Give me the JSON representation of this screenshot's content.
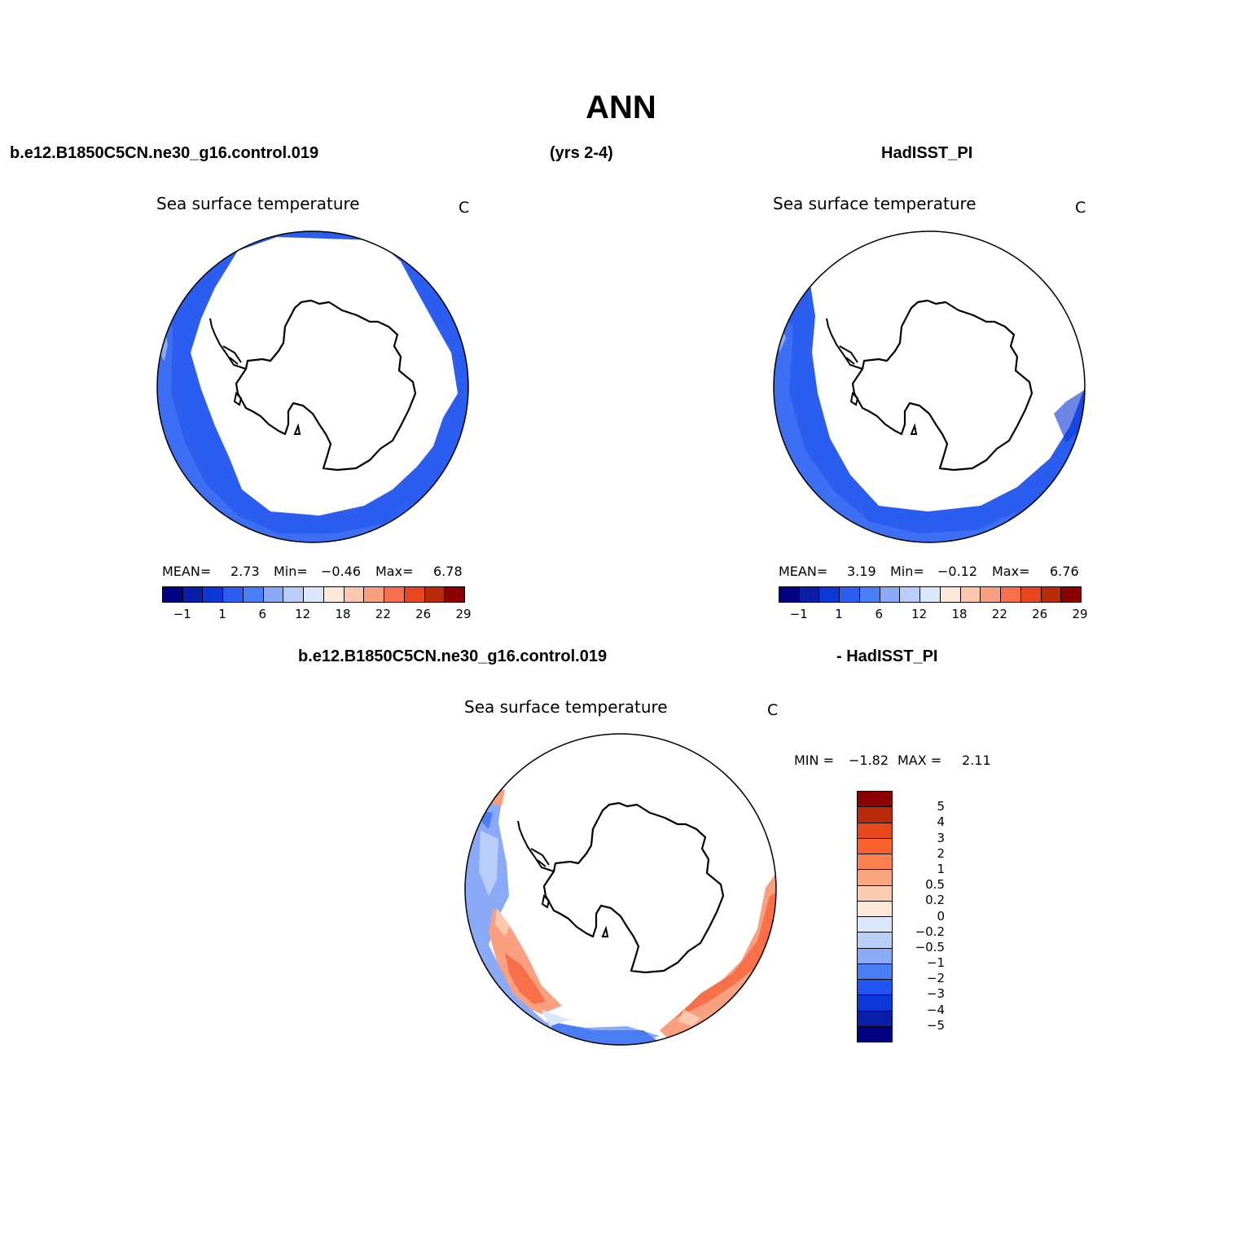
{
  "main_title": "ANN",
  "top_headers": {
    "left": "b.e12.B1850C5CN.ne30_g16.control.019",
    "center": "(yrs 2-4)",
    "right": "HadISST_PI"
  },
  "panel_left": {
    "title": "Sea surface temperature",
    "unit": "C",
    "mean_label": "MEAN=",
    "mean": "2.73",
    "min_label": "Min=",
    "min": "−0.46",
    "max_label": "Max=",
    "max": "6.78"
  },
  "panel_right": {
    "title": "Sea surface temperature",
    "unit": "C",
    "mean_label": "MEAN=",
    "mean": "3.19",
    "min_label": "Min=",
    "min": "−0.12",
    "max_label": "Max=",
    "max": "6.76"
  },
  "abs_colorbar": {
    "colors": [
      "#000080",
      "#0a1fa8",
      "#0b37d6",
      "#2b5ef0",
      "#4a7ef5",
      "#8aa9f7",
      "#b9cdf9",
      "#dbe7fb",
      "#fde8d9",
      "#fcc9b0",
      "#f9a080",
      "#f7704a",
      "#e8461c",
      "#b82a0a",
      "#8b0000"
    ],
    "ticks": [
      "−1",
      "1",
      "6",
      "12",
      "18",
      "22",
      "26",
      "29"
    ]
  },
  "diff_headers": {
    "left": "b.e12.B1850C5CN.ne30_g16.control.019",
    "right": "- HadISST_PI"
  },
  "panel_diff": {
    "title": "Sea surface temperature",
    "unit": "C",
    "min_label": "MIN =",
    "min": "−1.82",
    "max_label": "MAX =",
    "max": "2.11"
  },
  "diff_colorbar": {
    "colors_top_to_bottom": [
      "#8b0000",
      "#b82a0a",
      "#e8461c",
      "#f7602a",
      "#f98050",
      "#f9a580",
      "#fcccb0",
      "#fde8d9",
      "#dbe7fb",
      "#b9cdf9",
      "#8aa9f7",
      "#4a7ef5",
      "#1f55f0",
      "#0b37d6",
      "#0a1fa8",
      "#000080"
    ],
    "ticks_top_to_bottom": [
      "5",
      "4",
      "3",
      "2",
      "1",
      "0.5",
      "0.2",
      "0",
      "−0.2",
      "−0.5",
      "−1",
      "−2",
      "−3",
      "−4",
      "−5"
    ]
  }
}
